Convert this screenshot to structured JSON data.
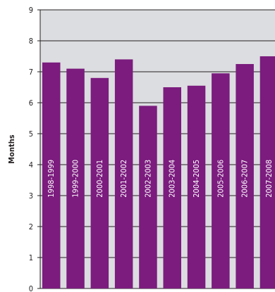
{
  "chart_data": {
    "type": "bar",
    "categories": [
      "1998-1999",
      "1999-2000",
      "2000-2001",
      "2001-2002",
      "2002-2003",
      "2003-2004",
      "2004-2005",
      "2005-2006",
      "2006-2007",
      "2007-2008"
    ],
    "values": [
      7.3,
      7.1,
      6.8,
      7.4,
      5.9,
      6.5,
      6.55,
      6.95,
      7.25,
      7.5
    ],
    "ylabel": "Months",
    "ylim": [
      0,
      9
    ],
    "yticks": [
      "0",
      "1",
      "2",
      "3",
      "4",
      "5",
      "6",
      "7",
      "8",
      "9"
    ],
    "grid": true,
    "colors": {
      "bar": "#7b1c7e",
      "background": "#dcdde0",
      "gridline": "#231f20",
      "bar_label": "#ffffff"
    }
  }
}
